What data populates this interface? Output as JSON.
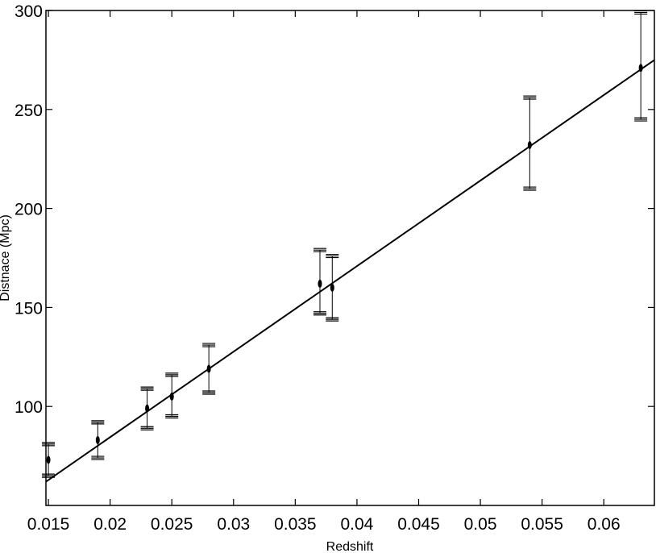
{
  "chart_data": {
    "type": "scatter",
    "title": "",
    "xlabel": "Redshift",
    "ylabel": "Distnace (Mpc)",
    "xlim": [
      0.0148,
      0.0641
    ],
    "ylim": [
      50,
      300
    ],
    "grid": false,
    "legend": "none",
    "x_ticks": [
      0.015,
      0.02,
      0.025,
      0.03,
      0.035,
      0.04,
      0.045,
      0.05,
      0.055,
      0.06
    ],
    "x_tick_labels": [
      "0.015",
      "0.02",
      "0.025",
      "0.03",
      "0.035",
      "0.04",
      "0.045",
      "0.05",
      "0.055",
      "0.06"
    ],
    "y_ticks": [
      100,
      150,
      200,
      250,
      300
    ],
    "y_tick_labels": [
      "100",
      "150",
      "200",
      "250",
      "300"
    ],
    "points": [
      {
        "x": 0.015,
        "y": 73,
        "err_low": 65,
        "err_high": 81
      },
      {
        "x": 0.019,
        "y": 83,
        "err_low": 74,
        "err_high": 92
      },
      {
        "x": 0.023,
        "y": 99,
        "err_low": 89,
        "err_high": 109
      },
      {
        "x": 0.025,
        "y": 105,
        "err_low": 95,
        "err_high": 116
      },
      {
        "x": 0.028,
        "y": 119,
        "err_low": 107,
        "err_high": 131
      },
      {
        "x": 0.037,
        "y": 162,
        "err_low": 147,
        "err_high": 179
      },
      {
        "x": 0.038,
        "y": 160,
        "err_low": 144,
        "err_high": 176
      },
      {
        "x": 0.054,
        "y": 232,
        "err_low": 210,
        "err_high": 256
      },
      {
        "x": 0.063,
        "y": 271,
        "err_low": 245,
        "err_high": 299
      }
    ],
    "fit_line": {
      "x": [
        0.0148,
        0.0641
      ],
      "y": [
        62,
        275
      ]
    },
    "colors": {
      "line": "#000000",
      "background": "#ffffff"
    }
  }
}
